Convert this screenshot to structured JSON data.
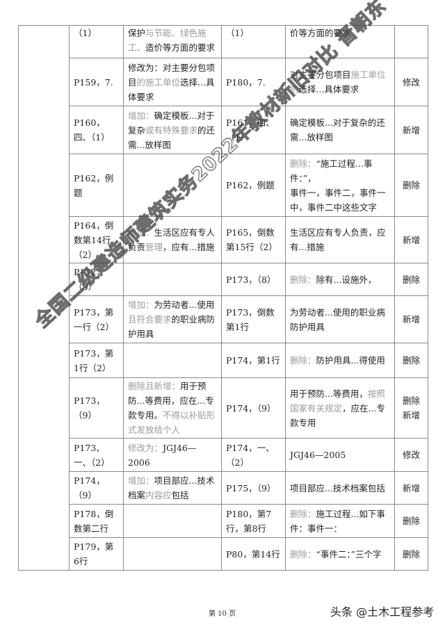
{
  "table": {
    "rows": [
      {
        "old_loc": "（1）",
        "old": [
          {
            "t": "保护"
          },
          {
            "t": "与节能、绿色施工、",
            "g": true
          },
          {
            "t": "造价等方面的要求"
          }
        ],
        "new_loc": "（1）",
        "new": [
          {
            "t": "价等方面的要求"
          }
        ],
        "action": ""
      },
      {
        "old_loc": "P159，7.",
        "old": [
          {
            "t": "修改为：对主要分包项目"
          },
          {
            "t": "的施工单位",
            "g": true
          },
          {
            "t": "选择...具体要求"
          }
        ],
        "new_loc": "P180，7.",
        "new": [
          {
            "t": "对主要分包项目"
          },
          {
            "t": "施工单位的",
            "g": true
          },
          {
            "t": "选择...具体要求"
          }
        ],
        "action": "修改"
      },
      {
        "old_loc": "P160，四、（1）",
        "old": [
          {
            "t": "增加：",
            "g": true
          },
          {
            "t": "确定模板...对于复杂"
          },
          {
            "t": "或有特殊要求",
            "g": true
          },
          {
            "t": "的还需...放样图"
          }
        ],
        "new_loc": "P161，四、（1）",
        "new": [
          {
            "t": "确定模板...对于复杂的还需...放样图"
          }
        ],
        "action": "新增"
      },
      {
        "old_loc": "P162，例题",
        "old": [],
        "new_loc": "P162，例题",
        "new": [
          {
            "t": "删除：",
            "g": true
          },
          {
            "t": "“施工过程...事件：”，"
          },
          {
            "br": true
          },
          {
            "t": "事件一，事件二，事件一中，事件二中这些文字"
          }
        ],
        "action": "删除"
      },
      {
        "old_loc": "P164，倒数第14行（2）",
        "old": [
          {
            "t": "增加：",
            "g": true
          },
          {
            "t": "生活区应有专人负责"
          },
          {
            "t": "管理",
            "g": true
          },
          {
            "t": "，应有...措施"
          }
        ],
        "new_loc": "P165，倒数第15行（2）",
        "new": [
          {
            "t": "生活区应有专人负责，应有...措施"
          }
        ],
        "action": "新增"
      },
      {
        "old_loc": "P172，（8）",
        "old": [],
        "new_loc": "P173，（8）",
        "new": [
          {
            "t": "删除：",
            "g": true
          },
          {
            "t": "除有...设施外，"
          }
        ],
        "action": "删除"
      },
      {
        "old_loc": "P173，第一行（2）",
        "old": [
          {
            "t": "增加：",
            "g": true
          },
          {
            "t": "为劳动者...使用"
          },
          {
            "t": "且符合要求",
            "g": true
          },
          {
            "t": "的职业病防护用具"
          }
        ],
        "new_loc": "P173，倒数第1行",
        "new": [
          {
            "t": "为劳动者...使用的职业病防护用具"
          }
        ],
        "action": "新增"
      },
      {
        "old_loc": "P173，第1行（2）",
        "old": [],
        "new_loc": "P174，第1行",
        "new": [
          {
            "t": "删除：",
            "g": true
          },
          {
            "t": "防护用具...得使用"
          }
        ],
        "action": "删除"
      },
      {
        "old_loc": "P173，（9）",
        "old": [
          {
            "t": "删除且新增：",
            "g": true
          },
          {
            "t": "用于预防...等费用，应在...专款专用。"
          },
          {
            "t": "不得以补贴形式发放给个人",
            "g": true
          }
        ],
        "new_loc": "P174，（9）",
        "new": [
          {
            "t": "用于预防...等费用，"
          },
          {
            "t": "按照国家有关规定",
            "g": true
          },
          {
            "t": "，应在...专款专用"
          }
        ],
        "action": "删除\n新增"
      },
      {
        "old_loc": "P173、一、（2）",
        "old": [
          {
            "t": "修改为：",
            "g": true
          },
          {
            "t": "JGJ46—2006"
          }
        ],
        "new_loc": "P174，一、（2）",
        "new": [
          {
            "t": "JGJ46—2005"
          }
        ],
        "action": "修改"
      },
      {
        "old_loc": "P174，（9）",
        "old": [
          {
            "t": "增加：",
            "g": true
          },
          {
            "t": "项目部应...技术档案"
          },
          {
            "t": "内容应",
            "g": true
          },
          {
            "t": "包括"
          }
        ],
        "new_loc": "P175，（9）",
        "new": [
          {
            "t": "项目部应...技术档案包括"
          }
        ],
        "action": "新增"
      },
      {
        "old_loc": "P178，倒数第二行",
        "old": [],
        "new_loc": "P180，第7行，第8行",
        "new": [
          {
            "t": "删除：",
            "g": true
          },
          {
            "t": "施工过程...如下事件：事件一："
          }
        ],
        "action": "删除"
      },
      {
        "old_loc": "P179，第6行",
        "old": [],
        "new_loc": "P80，第14行",
        "new": [
          {
            "t": "删除：",
            "g": true
          },
          {
            "t": "“事件二：”三个字"
          }
        ],
        "action": "删除"
      }
    ]
  },
  "footer": {
    "page": "第 10 页",
    "brand": "头条 @土木工程参考"
  },
  "watermark": "全国二级建造师建筑实务2022年教材新旧对比 晋朝东",
  "colors": {
    "text": "#222222",
    "changed_text": "#9a9a9a",
    "border": "#888888"
  }
}
